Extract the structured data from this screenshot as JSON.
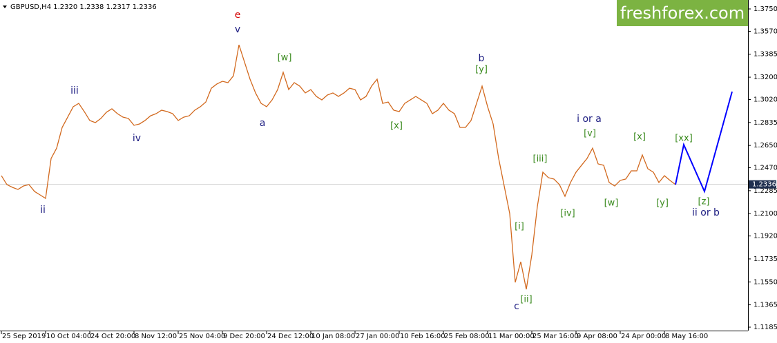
{
  "chart_data": {
    "type": "line",
    "title": "GBPUSD,H4  1.2320 1.2338 1.2317 1.2336",
    "watermark": "freshforex.com",
    "current_price": {
      "value": 1.2336,
      "label": "1.2336"
    },
    "ylim": [
      1.1185,
      1.375
    ],
    "yticks": [
      {
        "value": 1.375,
        "label": "1.3750"
      },
      {
        "value": 1.357,
        "label": "1.3570"
      },
      {
        "value": 1.3385,
        "label": "1.3385"
      },
      {
        "value": 1.32,
        "label": "1.3200"
      },
      {
        "value": 1.302,
        "label": "1.3020"
      },
      {
        "value": 1.2835,
        "label": "1.2835"
      },
      {
        "value": 1.265,
        "label": "1.2650"
      },
      {
        "value": 1.247,
        "label": "1.2470"
      },
      {
        "value": 1.2285,
        "label": "1.2285"
      },
      {
        "value": 1.21,
        "label": "1.2100"
      },
      {
        "value": 1.192,
        "label": "1.1920"
      },
      {
        "value": 1.1735,
        "label": "1.1735"
      },
      {
        "value": 1.155,
        "label": "1.1550"
      },
      {
        "value": 1.1365,
        "label": "1.1365"
      },
      {
        "value": 1.1185,
        "label": "1.1185"
      }
    ],
    "categories": [
      "25 Sep 2019",
      null,
      null,
      null,
      null,
      null,
      null,
      null,
      "10 Oct 04:00",
      null,
      null,
      null,
      null,
      null,
      null,
      null,
      "24 Oct 20:00",
      null,
      null,
      null,
      null,
      null,
      null,
      null,
      "8 Nov 12:00",
      null,
      null,
      null,
      null,
      null,
      null,
      null,
      "25 Nov 04:00",
      null,
      null,
      null,
      null,
      null,
      null,
      null,
      "9 Dec 20:00",
      null,
      null,
      null,
      null,
      null,
      null,
      null,
      "24 Dec 12:00",
      null,
      null,
      null,
      null,
      null,
      null,
      null,
      "10 Jan 08:00",
      null,
      null,
      null,
      null,
      null,
      null,
      null,
      "27 Jan 00:00",
      null,
      null,
      null,
      null,
      null,
      null,
      null,
      "10 Feb 16:00",
      null,
      null,
      null,
      null,
      null,
      null,
      null,
      "25 Feb 08:00",
      null,
      null,
      null,
      null,
      null,
      null,
      null,
      "11 Mar 00:00",
      null,
      null,
      null,
      null,
      null,
      null,
      null,
      "25 Mar 16:00",
      null,
      null,
      null,
      null,
      null,
      null,
      null,
      "9 Apr 08:00",
      null,
      null,
      null,
      null,
      null,
      null,
      null,
      "24 Apr 00:00",
      null,
      null,
      null,
      null,
      null,
      null,
      null,
      "8 May 16:00",
      null,
      null
    ],
    "series": [
      {
        "name": "GBPUSD",
        "color": "#d2691e",
        "values": [
          1.2406,
          1.2334,
          1.2312,
          1.2295,
          1.2323,
          1.2334,
          1.2279,
          1.2251,
          1.2223,
          1.2545,
          1.2628,
          1.2795,
          1.2878,
          1.2962,
          1.2989,
          1.2923,
          1.2851,
          1.2834,
          1.2867,
          1.2917,
          1.2945,
          1.2906,
          1.2878,
          1.2867,
          1.2812,
          1.2823,
          1.2851,
          1.2889,
          1.2906,
          1.2934,
          1.2923,
          1.2906,
          1.2851,
          1.2878,
          1.2889,
          1.2934,
          1.2962,
          1.3,
          1.3111,
          1.3145,
          1.3167,
          1.3156,
          1.3211,
          1.3461,
          1.3322,
          1.3184,
          1.3073,
          1.2989,
          1.2962,
          1.3017,
          1.31,
          1.3239,
          1.31,
          1.3156,
          1.3128,
          1.3073,
          1.31,
          1.3045,
          1.3017,
          1.3056,
          1.3073,
          1.3045,
          1.3073,
          1.3111,
          1.31,
          1.3017,
          1.3045,
          1.3128,
          1.3184,
          1.2989,
          1.3,
          1.2934,
          1.2923,
          1.2989,
          1.3017,
          1.3045,
          1.3017,
          1.2989,
          1.2906,
          1.2934,
          1.2989,
          1.2934,
          1.2906,
          1.2795,
          1.2795,
          1.2851,
          1.2989,
          1.3128,
          1.2962,
          1.2823,
          1.2545,
          1.2323,
          1.2101,
          1.1546,
          1.1712,
          1.149,
          1.1768,
          1.2157,
          1.2434,
          1.239,
          1.2379,
          1.2334,
          1.224,
          1.2351,
          1.2434,
          1.249,
          1.2545,
          1.2628,
          1.2501,
          1.249,
          1.2351,
          1.2323,
          1.2368,
          1.2379,
          1.2445,
          1.2445,
          1.2573,
          1.2462,
          1.2434,
          1.2351,
          1.2406,
          1.2368,
          1.2334
        ]
      }
    ],
    "forecast": {
      "color": "#0000ff",
      "x": [
        122,
        123.5,
        127.25,
        132.25
      ],
      "y": [
        1.2334,
        1.2656,
        1.2279,
        1.3084
      ]
    },
    "annotations": [
      {
        "text": "e",
        "color": "#d40000",
        "x": 42.75,
        "y": 1.37
      },
      {
        "text": "v",
        "color": "#1a1a80",
        "x": 42.75,
        "y": 1.3583
      },
      {
        "text": "iii",
        "color": "#1a1a80",
        "x": 13.25,
        "y": 1.3089
      },
      {
        "text": "ii",
        "color": "#1a1a80",
        "x": 7.5,
        "y": 1.2129
      },
      {
        "text": "iv",
        "color": "#1a1a80",
        "x": 24.5,
        "y": 1.2706
      },
      {
        "text": "a",
        "color": "#1a1a80",
        "x": 47.25,
        "y": 1.2828
      },
      {
        "text": "[w]",
        "color": "#3a8a1e",
        "x": 51.25,
        "y": 1.3356
      },
      {
        "text": "b",
        "color": "#1a1a80",
        "x": 86.875,
        "y": 1.335
      },
      {
        "text": "[y]",
        "color": "#3a8a1e",
        "x": 86.875,
        "y": 1.3261
      },
      {
        "text": "[x]",
        "color": "#3a8a1e",
        "x": 71.5,
        "y": 1.2806
      },
      {
        "text": "c",
        "color": "#1a1a80",
        "x": 93.25,
        "y": 1.1351
      },
      {
        "text": "[i]",
        "color": "#3a8a1e",
        "x": 93.75,
        "y": 1.1996
      },
      {
        "text": "[ii]",
        "color": "#3a8a1e",
        "x": 95,
        "y": 1.1407
      },
      {
        "text": "[iii]",
        "color": "#3a8a1e",
        "x": 97.5,
        "y": 1.254
      },
      {
        "text": "[iv]",
        "color": "#3a8a1e",
        "x": 102.5,
        "y": 1.2101
      },
      {
        "text": "i or a",
        "color": "#1a1a80",
        "x": 106.375,
        "y": 1.2862
      },
      {
        "text": "[v]",
        "color": "#3a8a1e",
        "x": 106.5,
        "y": 1.2745
      },
      {
        "text": "[w]",
        "color": "#3a8a1e",
        "x": 110.375,
        "y": 1.2184
      },
      {
        "text": "[x]",
        "color": "#3a8a1e",
        "x": 115.5,
        "y": 1.2717
      },
      {
        "text": "[y]",
        "color": "#3a8a1e",
        "x": 119.625,
        "y": 1.2184
      },
      {
        "text": "[xx]",
        "color": "#3a8a1e",
        "x": 123.5,
        "y": 1.2706
      },
      {
        "text": "[z]",
        "color": "#3a8a1e",
        "x": 127.125,
        "y": 1.2195
      },
      {
        "text": "ii or b",
        "color": "#1a1a80",
        "x": 127.5,
        "y": 1.2106
      }
    ]
  }
}
